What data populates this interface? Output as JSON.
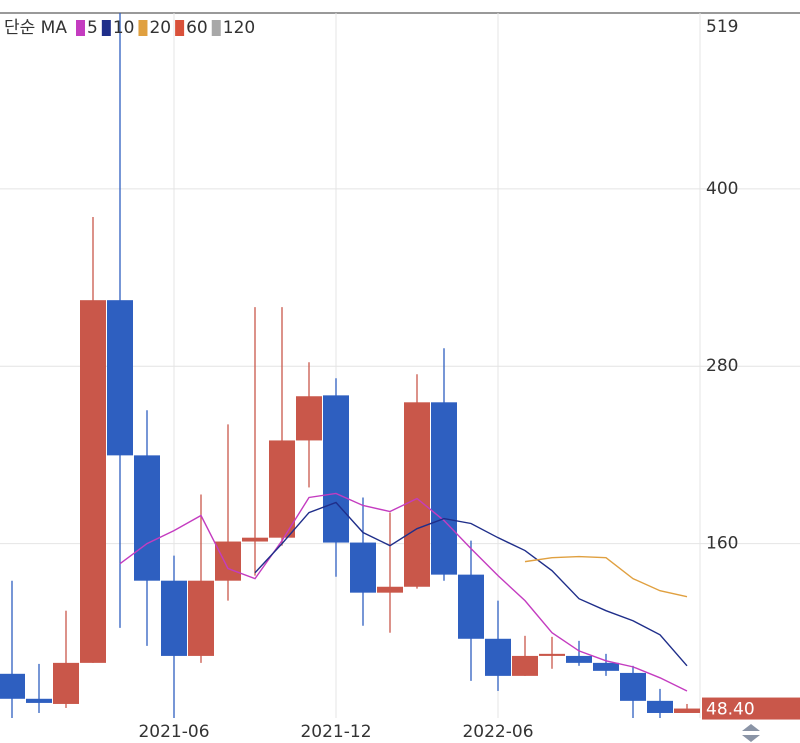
{
  "chart_data": {
    "type": "candlestick",
    "ma_label": "단순 MA",
    "categories": [
      null,
      null,
      null,
      null,
      null,
      null,
      "2021-06",
      null,
      null,
      null,
      null,
      null,
      "2021-12",
      null,
      null,
      null,
      null,
      null,
      "2022-06",
      null,
      null,
      null,
      null,
      null,
      null,
      null
    ],
    "open": [
      71.9,
      55,
      51.5,
      79.3,
      324.7,
      219.7,
      134.9,
      84,
      134.9,
      161.4,
      164,
      229.8,
      260.3,
      160.7,
      126.8,
      130.8,
      255.6,
      139,
      95.6,
      70.5,
      84,
      84,
      79.3,
      72.5,
      53.6,
      45.4
    ],
    "high": [
      134.9,
      78.6,
      114.6,
      381,
      519,
      250.2,
      151.9,
      193.2,
      240.7,
      320,
      320,
      282.7,
      271.9,
      191.2,
      181,
      274.6,
      292.2,
      162,
      121.4,
      97.6,
      96.9,
      94.2,
      85.4,
      77.3,
      61.7,
      51.5
    ],
    "low": [
      42,
      45.4,
      48.8,
      79.3,
      103,
      90.8,
      42,
      79.3,
      121.4,
      138.3,
      158.6,
      198,
      137.6,
      104.4,
      99.7,
      129.5,
      134.9,
      67.1,
      60.3,
      70.5,
      75.3,
      77.3,
      70.5,
      42,
      42,
      45.4
    ],
    "close": [
      55,
      52.2,
      79.3,
      324.7,
      219.7,
      134.9,
      84,
      134.9,
      161.4,
      164,
      229.8,
      259.7,
      160.7,
      126.8,
      130.8,
      255.6,
      139,
      95.6,
      70.5,
      84,
      85.4,
      79.3,
      73.9,
      53.6,
      45.4,
      48.4
    ],
    "up_color": "#c9574a",
    "down_color": "#2e5fc0",
    "series": [
      {
        "name": "5",
        "color": "#c43cc0",
        "values": [
          null,
          null,
          null,
          null,
          146.4,
          160,
          168.8,
          179,
          143.1,
          136.3,
          162,
          191.2,
          193.9,
          185.8,
          181.7,
          190.5,
          175.6,
          156.6,
          138.3,
          121.4,
          99.7,
          87.4,
          80.7,
          76.6,
          69.2,
          60.3
        ]
      },
      {
        "name": "10",
        "color": "#1f2e8a",
        "values": [
          null,
          null,
          null,
          null,
          null,
          null,
          null,
          null,
          null,
          140.3,
          160,
          181,
          187.8,
          167.5,
          158.6,
          170.1,
          176.9,
          173.6,
          164,
          155.3,
          141.7,
          122.7,
          114.6,
          107.8,
          98.3,
          77.3
        ]
      },
      {
        "name": "20",
        "color": "#e0a040",
        "values": [
          null,
          null,
          null,
          null,
          null,
          null,
          null,
          null,
          null,
          null,
          null,
          null,
          null,
          null,
          null,
          null,
          null,
          null,
          null,
          147.8,
          150.5,
          151.2,
          150.5,
          136.3,
          128.1,
          124.1
        ]
      },
      {
        "name": "60",
        "color": "#d9513a"
      },
      {
        "name": "120",
        "color": "#a8a8a8"
      }
    ],
    "ylim": [
      42,
      519
    ],
    "yticks": [
      160,
      280,
      400,
      519
    ],
    "grid": true,
    "last_price": {
      "value": 48.4,
      "label": "48.40"
    }
  }
}
